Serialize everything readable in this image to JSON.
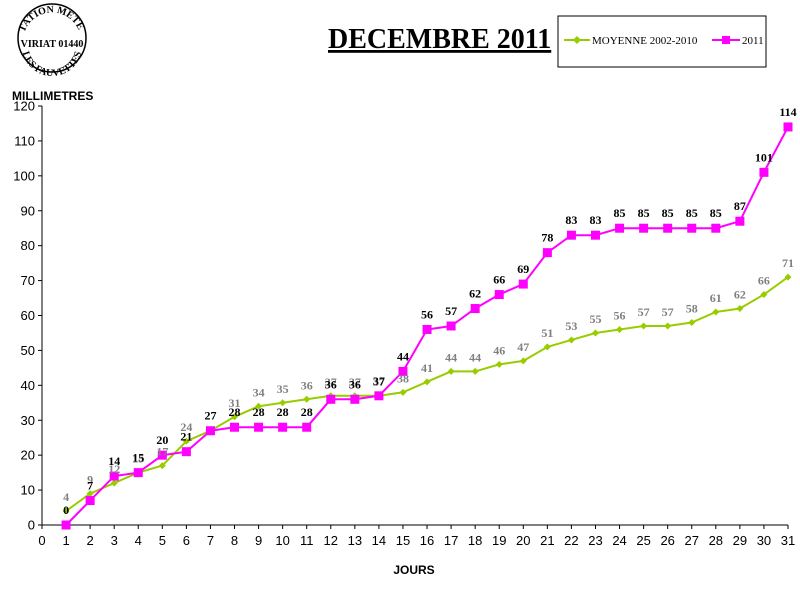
{
  "logo": {
    "top": "STATION METEO",
    "middle": "VIRIAT 01440",
    "bottom": "LES FAUVETTES"
  },
  "chart_data": {
    "type": "line",
    "title": "DECEMBRE 2011",
    "xlabel": "JOURS",
    "ylabel": "MILLIMETRES",
    "xlim": [
      0,
      31
    ],
    "ylim": [
      0,
      120
    ],
    "y_ticks": [
      0,
      10,
      20,
      30,
      40,
      50,
      60,
      70,
      80,
      90,
      100,
      110,
      120
    ],
    "x_ticks": [
      0,
      1,
      2,
      3,
      4,
      5,
      6,
      7,
      8,
      9,
      10,
      11,
      12,
      13,
      14,
      15,
      16,
      17,
      18,
      19,
      20,
      21,
      22,
      23,
      24,
      25,
      26,
      27,
      28,
      29,
      30,
      31
    ],
    "x": [
      1,
      2,
      3,
      4,
      5,
      6,
      7,
      8,
      9,
      10,
      11,
      12,
      13,
      14,
      15,
      16,
      17,
      18,
      19,
      20,
      21,
      22,
      23,
      24,
      25,
      26,
      27,
      28,
      29,
      30,
      31
    ],
    "grid": false,
    "legend_position": "top-right",
    "series": [
      {
        "name": "MOYENNE 2002-2010",
        "color": "#99cc00",
        "marker": "diamond",
        "label_color": "#808080",
        "values": [
          4,
          9,
          12,
          15,
          17,
          24,
          27,
          31,
          34,
          35,
          36,
          37,
          37,
          37,
          38,
          41,
          44,
          44,
          46,
          47,
          51,
          53,
          55,
          56,
          57,
          57,
          58,
          61,
          62,
          66,
          71
        ]
      },
      {
        "name": "2011",
        "color": "#ff00ff",
        "marker": "square",
        "label_color": "#000000",
        "values": [
          0,
          7,
          14,
          15,
          20,
          21,
          27,
          28,
          28,
          28,
          28,
          36,
          36,
          37,
          44,
          56,
          57,
          62,
          66,
          69,
          78,
          83,
          83,
          85,
          85,
          85,
          85,
          85,
          87,
          101,
          114
        ],
        "labels": [
          "0",
          "7",
          "14",
          "15",
          "20",
          "21",
          "27",
          "28",
          "28",
          "28",
          "28",
          "36",
          "36",
          "37",
          "44",
          "56",
          "57",
          "62",
          "66",
          "69",
          "78",
          "83",
          "83",
          "85",
          "85",
          "85",
          "85",
          "85",
          "87",
          "101",
          "114"
        ]
      }
    ],
    "avg_labels": [
      "4",
      "9",
      "12",
      "15",
      "17",
      "24",
      "",
      "31",
      "34",
      "35",
      "36",
      "37",
      "37",
      "37",
      "38",
      "41",
      "44",
      "44",
      "46",
      "47",
      "51",
      "53",
      "55",
      "56",
      "57",
      "57",
      "58",
      "61",
      "62",
      "66",
      "71"
    ]
  }
}
